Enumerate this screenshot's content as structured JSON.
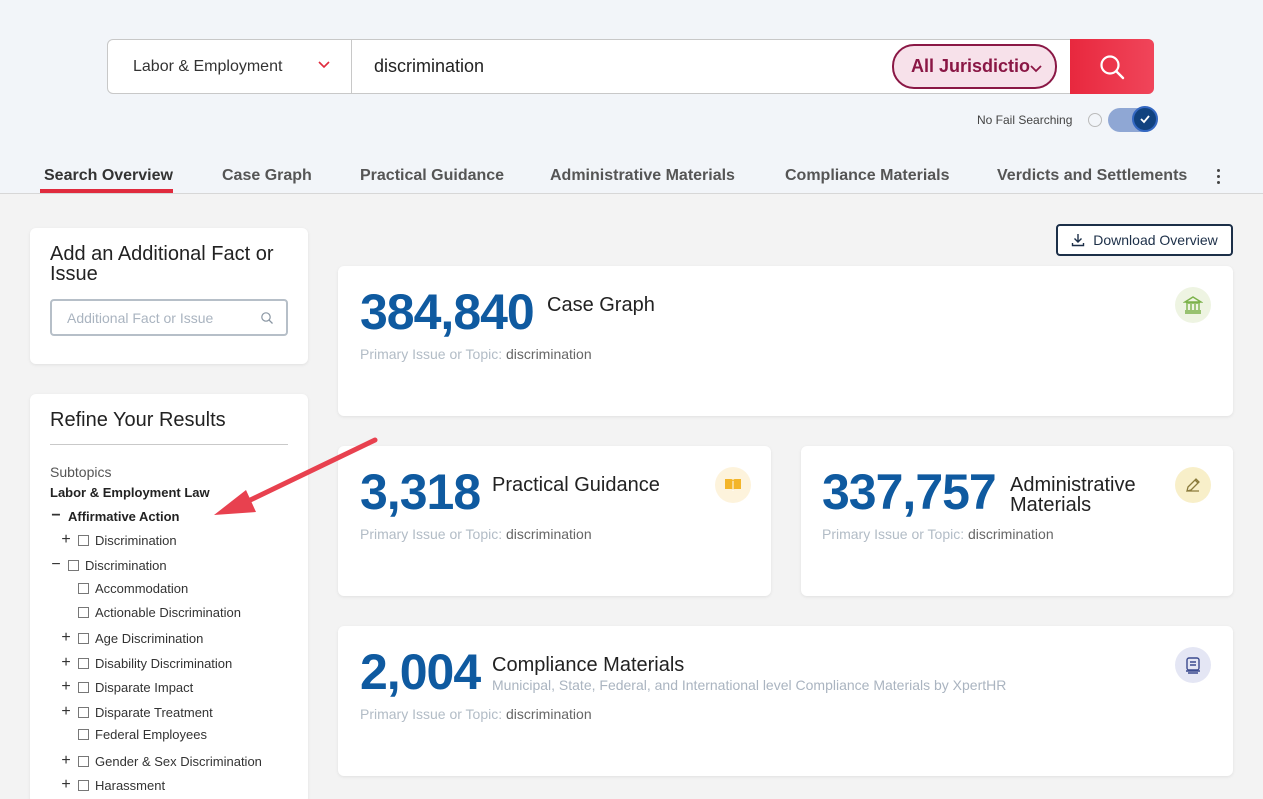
{
  "search": {
    "practice_area": "Labor & Employment",
    "query": "discrimination",
    "jurisdiction": "All Jurisdictio",
    "no_fail_label": "No Fail Searching"
  },
  "tabs": [
    {
      "label": "Search Overview"
    },
    {
      "label": "Case Graph"
    },
    {
      "label": "Practical Guidance"
    },
    {
      "label": "Administrative Materials"
    },
    {
      "label": "Compliance Materials"
    },
    {
      "label": "Verdicts and Settlements"
    }
  ],
  "add_fact": {
    "title": "Add an Additional Fact or Issue",
    "placeholder": "Additional Fact or Issue"
  },
  "refine": {
    "title": "Refine Your Results",
    "subtopics_label": "Subtopics",
    "root": "Labor & Employment Law",
    "items": [
      {
        "label": "Affirmative Action"
      },
      {
        "label": "Discrimination"
      },
      {
        "label": "Discrimination"
      },
      {
        "label": "Accommodation"
      },
      {
        "label": "Actionable Discrimination"
      },
      {
        "label": "Age Discrimination"
      },
      {
        "label": "Disability Discrimination"
      },
      {
        "label": "Disparate Impact"
      },
      {
        "label": "Disparate Treatment"
      },
      {
        "label": "Federal Employees"
      },
      {
        "label": "Gender & Sex Discrimination"
      },
      {
        "label": "Harassment"
      }
    ]
  },
  "download_label": "Download Overview",
  "primary_label": "Primary Issue or Topic:",
  "primary_value": "discrimination",
  "cards": {
    "case_graph": {
      "count": "384,840",
      "name": "Case Graph"
    },
    "practical": {
      "count": "3,318",
      "name": "Practical Guidance"
    },
    "admin": {
      "count": "337,757",
      "name": "Administrative Materials"
    },
    "compliance": {
      "count": "2,004",
      "name": "Compliance Materials",
      "desc": "Municipal, State, Federal, and International level Compliance Materials by XpertHR"
    }
  },
  "colors": {
    "accent_red": "#e8283e",
    "jurisdiction": "#8a1745",
    "count_blue": "#0f5aa0"
  }
}
